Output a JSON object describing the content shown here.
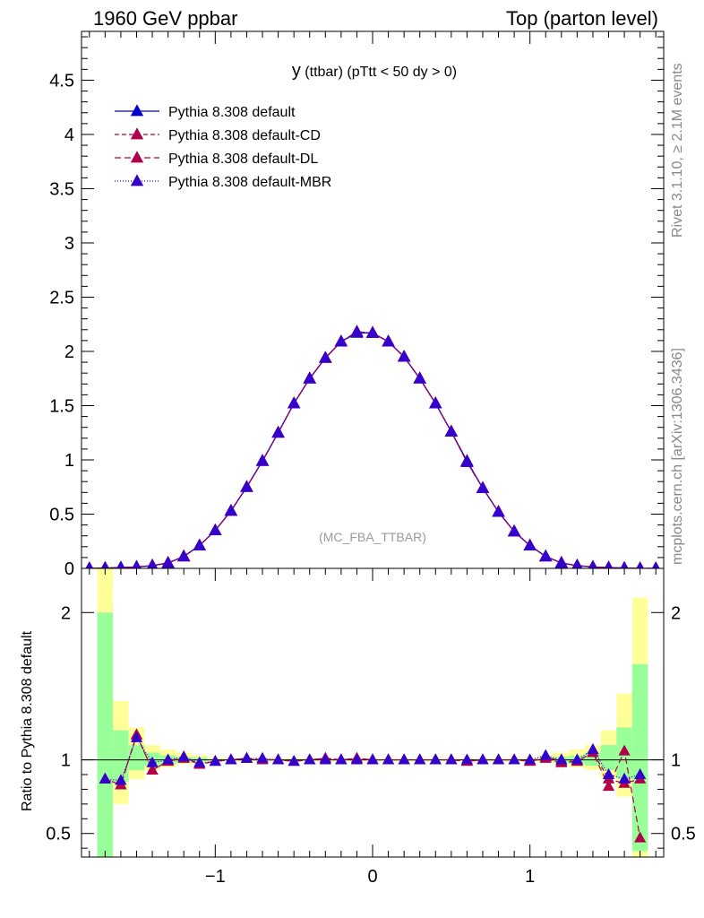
{
  "header": {
    "left": "1960 GeV ppbar",
    "right": "Top (parton level)"
  },
  "side_labels": {
    "rivet": "Rivet 3.1.10, ≥ 2.1M events",
    "mcplots": "mcplots.cern.ch [arXiv:1306.3436]"
  },
  "chart_data": [
    {
      "type": "line",
      "title": "y (ttbar) (pTtt < 50 dy > 0)",
      "title_main": "y",
      "title_rest": " (ttbar) (pTtt < 50 dy > 0)",
      "watermark": "(MC_FBA_TTBAR)",
      "xlim": [
        -1.85,
        1.85
      ],
      "ylim": [
        0,
        4.95
      ],
      "yticks": [
        0,
        0.5,
        1,
        1.5,
        2,
        2.5,
        3,
        3.5,
        4,
        4.5
      ],
      "ytick_labels": [
        "0",
        "0.5",
        "1",
        "1.5",
        "2",
        "2.5",
        "3",
        "3.5",
        "4",
        "4.5"
      ],
      "legend_position": "top-left",
      "x": [
        -1.8,
        -1.7,
        -1.6,
        -1.5,
        -1.4,
        -1.3,
        -1.2,
        -1.1,
        -1.0,
        -0.9,
        -0.8,
        -0.7,
        -0.6,
        -0.5,
        -0.4,
        -0.3,
        -0.2,
        -0.1,
        0.0,
        0.1,
        0.2,
        0.3,
        0.4,
        0.5,
        0.6,
        0.7,
        0.8,
        0.9,
        1.0,
        1.1,
        1.2,
        1.3,
        1.4,
        1.5,
        1.6,
        1.7,
        1.8
      ],
      "series": [
        {
          "name": "Pythia 8.308 default",
          "color": "#0000cc",
          "dash": "solid",
          "values": [
            0.0,
            0.003,
            0.007,
            0.013,
            0.025,
            0.05,
            0.11,
            0.21,
            0.35,
            0.53,
            0.75,
            0.99,
            1.25,
            1.52,
            1.75,
            1.94,
            2.09,
            2.17,
            2.17,
            2.09,
            1.95,
            1.75,
            1.52,
            1.26,
            0.99,
            0.74,
            0.52,
            0.34,
            0.21,
            0.11,
            0.05,
            0.025,
            0.013,
            0.007,
            0.003,
            0.0,
            0.0
          ]
        },
        {
          "name": "Pythia 8.308 default-CD",
          "color": "#b0004a",
          "dash": "5,3",
          "values": [
            0.0,
            0.003,
            0.007,
            0.013,
            0.025,
            0.05,
            0.11,
            0.21,
            0.35,
            0.53,
            0.75,
            0.99,
            1.25,
            1.52,
            1.75,
            1.94,
            2.09,
            2.18,
            2.17,
            2.09,
            1.95,
            1.75,
            1.52,
            1.26,
            0.98,
            0.74,
            0.52,
            0.34,
            0.21,
            0.11,
            0.05,
            0.025,
            0.013,
            0.007,
            0.003,
            0.0,
            0.0
          ]
        },
        {
          "name": "Pythia 8.308 default-DL",
          "color": "#b0004a",
          "dash": "7,4",
          "values": [
            0.0,
            0.003,
            0.007,
            0.013,
            0.025,
            0.05,
            0.11,
            0.21,
            0.35,
            0.53,
            0.75,
            0.99,
            1.25,
            1.52,
            1.75,
            1.94,
            2.09,
            2.18,
            2.17,
            2.09,
            1.95,
            1.75,
            1.52,
            1.26,
            0.98,
            0.74,
            0.52,
            0.34,
            0.21,
            0.11,
            0.05,
            0.025,
            0.013,
            0.007,
            0.003,
            0.0,
            0.0
          ]
        },
        {
          "name": "Pythia 8.308 default-MBR",
          "color": "#3300cc",
          "dash": "1,2",
          "values": [
            0.0,
            0.003,
            0.007,
            0.013,
            0.025,
            0.05,
            0.11,
            0.21,
            0.35,
            0.53,
            0.75,
            0.99,
            1.25,
            1.52,
            1.75,
            1.94,
            2.09,
            2.18,
            2.17,
            2.09,
            1.95,
            1.75,
            1.52,
            1.26,
            0.98,
            0.74,
            0.52,
            0.34,
            0.21,
            0.11,
            0.05,
            0.025,
            0.013,
            0.007,
            0.003,
            0.0,
            0.0
          ]
        }
      ]
    },
    {
      "type": "line",
      "ylabel": "Ratio to Pythia 8.308 default",
      "xlim": [
        -1.85,
        1.85
      ],
      "ylim": [
        0.34,
        2.3
      ],
      "xticks": [
        -1,
        0,
        1
      ],
      "xtick_labels": [
        "−1",
        "0",
        "1"
      ],
      "yticks": [
        0.5,
        1,
        2
      ],
      "ytick_labels": [
        "0.5",
        "1",
        "2"
      ],
      "reference_line": 1,
      "uncertainty_bands": {
        "inner_color": "#99ff99",
        "outer_color": "#ffff99",
        "bins": [
          {
            "x0": -1.75,
            "x1": -1.65,
            "inner": [
              0.34,
              2.0
            ],
            "outer": [
              0.34,
              2.3
            ]
          },
          {
            "x0": -1.65,
            "x1": -1.55,
            "inner": [
              0.85,
              1.2
            ],
            "outer": [
              0.7,
              1.4
            ]
          },
          {
            "x0": -1.55,
            "x1": -1.45,
            "inner": [
              0.93,
              1.1
            ],
            "outer": [
              0.87,
              1.22
            ]
          },
          {
            "x0": -1.45,
            "x1": -1.35,
            "inner": [
              0.96,
              1.05
            ],
            "outer": [
              0.93,
              1.1
            ]
          },
          {
            "x0": -1.35,
            "x1": -1.25,
            "inner": [
              0.97,
              1.03
            ],
            "outer": [
              0.95,
              1.07
            ]
          },
          {
            "x0": -1.25,
            "x1": -1.15,
            "inner": [
              0.98,
              1.02
            ],
            "outer": [
              0.97,
              1.05
            ]
          },
          {
            "x0": -1.15,
            "x1": -1.05,
            "inner": [
              0.99,
              1.015
            ],
            "outer": [
              0.98,
              1.03
            ]
          },
          {
            "x0": -1.05,
            "x1": 1.05,
            "inner": [
              0.995,
              1.005
            ],
            "outer": [
              0.99,
              1.012
            ]
          },
          {
            "x0": 1.05,
            "x1": 1.15,
            "inner": [
              0.99,
              1.015
            ],
            "outer": [
              0.98,
              1.03
            ]
          },
          {
            "x0": 1.15,
            "x1": 1.25,
            "inner": [
              0.98,
              1.02
            ],
            "outer": [
              0.97,
              1.05
            ]
          },
          {
            "x0": 1.25,
            "x1": 1.35,
            "inner": [
              0.97,
              1.03
            ],
            "outer": [
              0.95,
              1.07
            ]
          },
          {
            "x0": 1.35,
            "x1": 1.45,
            "inner": [
              0.96,
              1.05
            ],
            "outer": [
              0.93,
              1.1
            ]
          },
          {
            "x0": 1.45,
            "x1": 1.55,
            "inner": [
              0.93,
              1.1
            ],
            "outer": [
              0.87,
              1.2
            ]
          },
          {
            "x0": 1.55,
            "x1": 1.65,
            "inner": [
              0.87,
              1.22
            ],
            "outer": [
              0.75,
              1.45
            ]
          },
          {
            "x0": 1.65,
            "x1": 1.75,
            "inner": [
              0.38,
              1.65
            ],
            "outer": [
              0.34,
              2.1
            ]
          }
        ]
      },
      "x": [
        -1.7,
        -1.6,
        -1.5,
        -1.4,
        -1.3,
        -1.2,
        -1.1,
        -1.0,
        -0.9,
        -0.8,
        -0.7,
        -0.6,
        -0.5,
        -0.4,
        -0.3,
        -0.2,
        -0.1,
        0.0,
        0.1,
        0.2,
        0.3,
        0.4,
        0.5,
        0.6,
        0.7,
        0.8,
        0.9,
        1.0,
        1.1,
        1.2,
        1.3,
        1.4,
        1.5,
        1.6,
        1.7
      ],
      "series": [
        {
          "name": "Pythia 8.308 default-CD",
          "color": "#b0004a",
          "dash": "5,3",
          "values": [
            0.87,
            0.83,
            1.17,
            0.93,
            0.99,
            1.01,
            0.97,
            0.99,
            1.0,
            1.01,
            1.0,
            1.0,
            0.99,
            1.0,
            1.01,
            1.0,
            1.01,
            1.0,
            1.0,
            1.0,
            1.0,
            1.0,
            1.0,
            0.99,
            1.0,
            1.0,
            1.0,
            0.99,
            1.01,
            0.98,
            0.99,
            1.05,
            0.87,
            0.84,
            0.87
          ]
        },
        {
          "name": "Pythia 8.308 default-DL",
          "color": "#b0004a",
          "dash": "7,4",
          "values": [
            0.87,
            0.83,
            1.17,
            0.93,
            0.99,
            1.02,
            0.97,
            0.99,
            1.0,
            1.01,
            1.0,
            1.0,
            0.99,
            1.0,
            1.01,
            1.0,
            1.01,
            1.0,
            1.0,
            1.0,
            1.0,
            1.0,
            1.0,
            0.99,
            1.0,
            1.0,
            1.0,
            0.99,
            1.02,
            0.99,
            0.99,
            1.05,
            0.82,
            1.06,
            0.47
          ]
        },
        {
          "name": "Pythia 8.308 default-MBR",
          "color": "#3300cc",
          "dash": "1,2",
          "values": [
            0.87,
            0.86,
            1.15,
            0.98,
            1.0,
            1.02,
            0.98,
            0.99,
            1.0,
            1.01,
            1.01,
            1.0,
            0.99,
            1.0,
            1.0,
            1.0,
            1.0,
            1.0,
            1.0,
            1.0,
            1.0,
            1.0,
            1.0,
            1.0,
            1.0,
            1.0,
            1.0,
            1.0,
            1.03,
            1.0,
            1.0,
            1.07,
            0.9,
            0.87,
            0.9
          ]
        }
      ]
    }
  ]
}
